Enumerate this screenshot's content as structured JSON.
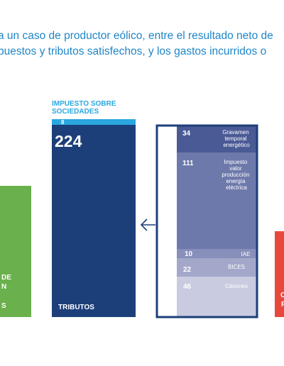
{
  "intro_text": {
    "line1": "a un caso de productor eólico, entre el resultado neto de",
    "line2": "puestos y tributos satisfechos, y los gastos incurridos o"
  },
  "chart_data": {
    "type": "bar",
    "bars": {
      "left_partial": {
        "lines": [
          "DE",
          "N",
          "S"
        ],
        "color": "#6ab04c"
      },
      "tributos": {
        "label": "TRIBUTOS",
        "total": 224,
        "color": "#1c3f7a",
        "top_segment": {
          "label": "IMPUESTO SOBRE SOCIEDADES",
          "value": 8,
          "color": "#2aa7df"
        }
      },
      "right_partial": {
        "lines": [
          "C",
          "F"
        ],
        "color": "#e8483b"
      }
    },
    "breakdown": [
      {
        "value": 34,
        "label": "Gravamen temporal energético",
        "color": "#4a5a95"
      },
      {
        "value": 111,
        "label": "Impuesto valor producción energía eléctrica",
        "color": "#6e79ab"
      },
      {
        "value": 10,
        "label": "IAE",
        "color": "#878fba"
      },
      {
        "value": 22,
        "label": "BICES",
        "color": "#a3a8cb"
      },
      {
        "value": 46,
        "label": "Cánones",
        "color": "#c9cbe0"
      }
    ],
    "colors": {
      "frame": "#1c3f7a",
      "arrow": "#1c3f7a"
    }
  }
}
